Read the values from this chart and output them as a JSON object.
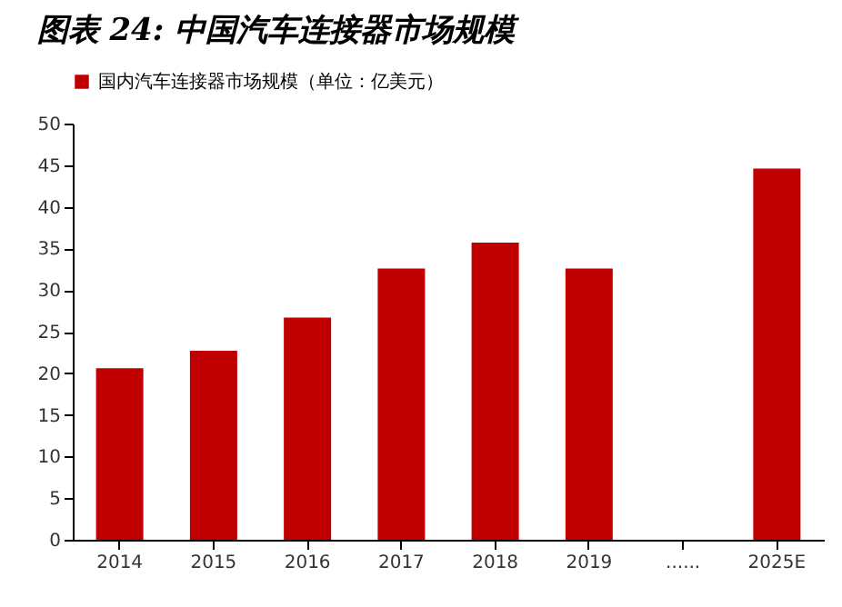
{
  "chart_data": {
    "type": "bar",
    "title": "图表 24:  中国汽车连接器市场规模",
    "categories": [
      "2014",
      "2015",
      "2016",
      "2017",
      "2018",
      "2019",
      "......",
      "2025E"
    ],
    "series": [
      {
        "name": "国内汽车连接器市场规模（单位：亿美元）",
        "color": "#c00000",
        "values": [
          20.6,
          22.7,
          26.7,
          32.6,
          35.7,
          32.6,
          null,
          44.6
        ]
      }
    ],
    "ylim": [
      0,
      50
    ],
    "yticks": [
      0,
      5,
      10,
      15,
      20,
      25,
      30,
      35,
      40,
      45,
      50
    ],
    "grid": false,
    "legend": "top"
  }
}
